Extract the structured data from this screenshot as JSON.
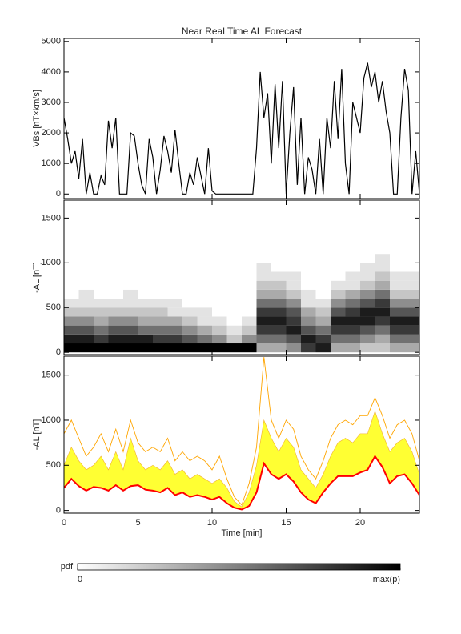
{
  "chart_data": [
    {
      "type": "line",
      "title": "Near Real Time AL Forecast",
      "ylabel": "VBs [nT×km/s]",
      "xlim": [
        0,
        24
      ],
      "xticks": [
        0,
        5,
        10,
        15,
        20
      ],
      "xtick_labels": false,
      "ylim": [
        -150,
        5100
      ],
      "yticks": [
        0,
        1000,
        2000,
        3000,
        4000,
        5000
      ],
      "x": [
        0,
        0.25,
        0.5,
        0.75,
        1,
        1.25,
        1.5,
        1.75,
        2,
        2.25,
        2.5,
        2.75,
        3,
        3.25,
        3.5,
        3.75,
        4,
        4.25,
        4.5,
        4.75,
        5,
        5.25,
        5.5,
        5.75,
        6,
        6.25,
        6.5,
        6.75,
        7,
        7.25,
        7.5,
        7.75,
        8,
        8.25,
        8.5,
        8.75,
        9,
        9.25,
        9.5,
        9.75,
        10,
        10.25,
        10.5,
        10.75,
        11,
        11.25,
        11.5,
        11.75,
        12,
        12.25,
        12.5,
        12.75,
        13,
        13.25,
        13.5,
        13.75,
        14,
        14.25,
        14.5,
        14.75,
        15,
        15.25,
        15.5,
        15.75,
        16,
        16.25,
        16.5,
        16.75,
        17,
        17.25,
        17.5,
        17.75,
        18,
        18.25,
        18.5,
        18.75,
        19,
        19.25,
        19.5,
        19.75,
        20,
        20.25,
        20.5,
        20.75,
        21,
        21.25,
        21.5,
        21.75,
        22,
        22.25,
        22.5,
        22.75,
        23,
        23.25,
        23.5,
        23.75,
        24
      ],
      "series": [
        {
          "color": "#000000",
          "values": [
            2500,
            1800,
            1000,
            1400,
            500,
            1800,
            0,
            700,
            0,
            0,
            600,
            300,
            2400,
            1500,
            2500,
            0,
            0,
            0,
            2000,
            1900,
            1000,
            300,
            0,
            1800,
            1200,
            0,
            800,
            1900,
            1400,
            700,
            2100,
            1000,
            0,
            0,
            700,
            300,
            1200,
            600,
            0,
            1500,
            100,
            0,
            0,
            0,
            0,
            0,
            0,
            0,
            0,
            0,
            0,
            0,
            1500,
            4000,
            2500,
            3300,
            1000,
            3600,
            1500,
            3700,
            0,
            2000,
            3500,
            300,
            2500,
            0,
            1200,
            800,
            0,
            1800,
            0,
            2500,
            1500,
            3700,
            1800,
            4100,
            1000,
            0,
            3000,
            2500,
            2000,
            3800,
            4300,
            3500,
            4000,
            3000,
            3700,
            2700,
            2000,
            0,
            0,
            2500,
            4100,
            3400,
            0,
            1400,
            0
          ]
        }
      ]
    },
    {
      "type": "heatmap",
      "ylabel": "-AL [nT]",
      "xlim": [
        0,
        24
      ],
      "xticks": [
        0,
        5,
        10,
        15,
        20
      ],
      "xtick_labels": false,
      "ylim": [
        -25,
        1700
      ],
      "yticks": [
        0,
        500,
        1000,
        1500
      ],
      "xbins": [
        0,
        1,
        2,
        3,
        4,
        5,
        6,
        7,
        8,
        9,
        10,
        11,
        12,
        13,
        14,
        15,
        16,
        17,
        18,
        19,
        20,
        21,
        22,
        23,
        24
      ],
      "ybins": [
        0,
        100,
        200,
        300,
        400,
        500,
        600,
        700,
        800,
        900,
        1000,
        1100,
        1200
      ],
      "density": [
        [
          9,
          8,
          6,
          4,
          2,
          1,
          0,
          0,
          0,
          0,
          0,
          0
        ],
        [
          9,
          8,
          6,
          4,
          2,
          1,
          1,
          0,
          0,
          0,
          0,
          0
        ],
        [
          9,
          7,
          5,
          3,
          2,
          1,
          0,
          0,
          0,
          0,
          0,
          0
        ],
        [
          9,
          8,
          6,
          4,
          2,
          1,
          0,
          0,
          0,
          0,
          0,
          0
        ],
        [
          9,
          8,
          6,
          4,
          2,
          1,
          1,
          0,
          0,
          0,
          0,
          0
        ],
        [
          9,
          8,
          5,
          3,
          2,
          1,
          0,
          0,
          0,
          0,
          0,
          0
        ],
        [
          9,
          7,
          5,
          3,
          2,
          1,
          0,
          0,
          0,
          0,
          0,
          0
        ],
        [
          9,
          7,
          5,
          3,
          1,
          1,
          0,
          0,
          0,
          0,
          0,
          0
        ],
        [
          9,
          6,
          4,
          2,
          1,
          0,
          0,
          0,
          0,
          0,
          0,
          0
        ],
        [
          9,
          5,
          3,
          1,
          1,
          0,
          0,
          0,
          0,
          0,
          0,
          0
        ],
        [
          9,
          4,
          2,
          1,
          0,
          0,
          0,
          0,
          0,
          0,
          0,
          0
        ],
        [
          9,
          2,
          1,
          0,
          0,
          0,
          0,
          0,
          0,
          0,
          0,
          0
        ],
        [
          9,
          4,
          2,
          1,
          0,
          0,
          0,
          0,
          0,
          0,
          0,
          0
        ],
        [
          3,
          5,
          7,
          8,
          7,
          5,
          3,
          2,
          1,
          1,
          0,
          0
        ],
        [
          3,
          5,
          7,
          8,
          7,
          5,
          3,
          2,
          1,
          0,
          0,
          0
        ],
        [
          4,
          6,
          8,
          7,
          6,
          4,
          2,
          1,
          1,
          0,
          0,
          0
        ],
        [
          7,
          8,
          6,
          4,
          3,
          1,
          1,
          0,
          0,
          0,
          0,
          0
        ],
        [
          8,
          7,
          5,
          3,
          2,
          1,
          0,
          0,
          0,
          0,
          0,
          0
        ],
        [
          3,
          5,
          7,
          8,
          6,
          4,
          2,
          1,
          0,
          0,
          0,
          0
        ],
        [
          3,
          5,
          7,
          8,
          7,
          5,
          3,
          1,
          1,
          0,
          0,
          0
        ],
        [
          2,
          4,
          6,
          8,
          8,
          6,
          4,
          2,
          1,
          1,
          0,
          0
        ],
        [
          2,
          3,
          5,
          7,
          8,
          7,
          5,
          3,
          2,
          1,
          1,
          0
        ],
        [
          3,
          5,
          7,
          8,
          6,
          4,
          2,
          1,
          1,
          0,
          0,
          0
        ],
        [
          3,
          5,
          7,
          8,
          6,
          4,
          2,
          1,
          1,
          0,
          0,
          0
        ]
      ],
      "colorbar": {
        "label": "pdf",
        "lim": [
          0,
          9
        ],
        "ticks": [
          0,
          {
            "value": 9,
            "label": "max(p)"
          }
        ]
      }
    },
    {
      "type": "band",
      "ylabel": "-AL [nT]",
      "xlabel": "Time [min]",
      "xlim": [
        0,
        24
      ],
      "xticks": [
        0,
        5,
        10,
        15,
        20
      ],
      "xtick_labels": true,
      "ylim": [
        -30,
        1710
      ],
      "yticks": [
        0,
        500,
        1000,
        1500
      ],
      "x": [
        0,
        0.5,
        1,
        1.5,
        2,
        2.5,
        3,
        3.5,
        4,
        4.5,
        5,
        5.5,
        6,
        6.5,
        7,
        7.5,
        8,
        8.5,
        9,
        9.5,
        10,
        10.5,
        11,
        11.5,
        12,
        12.5,
        13,
        13.5,
        14,
        14.5,
        15,
        15.5,
        16,
        16.5,
        17,
        17.5,
        18,
        18.5,
        19,
        19.5,
        20,
        20.5,
        21,
        21.5,
        22,
        22.5,
        23,
        23.5,
        24
      ],
      "series": [
        {
          "color": "#ffa500",
          "values": [
            850,
            1000,
            800,
            600,
            700,
            850,
            650,
            900,
            650,
            1000,
            750,
            650,
            700,
            650,
            800,
            550,
            650,
            550,
            600,
            550,
            450,
            600,
            350,
            150,
            60,
            300,
            700,
            1700,
            1000,
            800,
            1000,
            900,
            600,
            450,
            350,
            550,
            800,
            950,
            1000,
            950,
            1050,
            1050,
            1250,
            1050,
            800,
            950,
            1000,
            850,
            550
          ]
        },
        {
          "color": "#ffff33",
          "fill_to_next": true,
          "values": [
            500,
            700,
            550,
            450,
            500,
            600,
            450,
            650,
            450,
            800,
            550,
            450,
            500,
            450,
            550,
            400,
            450,
            350,
            400,
            350,
            300,
            350,
            250,
            100,
            40,
            200,
            500,
            1000,
            800,
            650,
            800,
            700,
            450,
            350,
            250,
            400,
            600,
            750,
            800,
            750,
            850,
            850,
            1100,
            850,
            650,
            750,
            800,
            650,
            400
          ]
        },
        {
          "color": "#ff0000",
          "values": [
            250,
            350,
            270,
            220,
            260,
            250,
            220,
            280,
            220,
            270,
            280,
            230,
            220,
            200,
            250,
            170,
            200,
            150,
            170,
            150,
            120,
            150,
            80,
            30,
            10,
            50,
            200,
            520,
            400,
            350,
            400,
            320,
            200,
            120,
            80,
            200,
            300,
            380,
            380,
            380,
            420,
            450,
            600,
            480,
            300,
            380,
            400,
            300,
            170
          ]
        }
      ]
    }
  ]
}
